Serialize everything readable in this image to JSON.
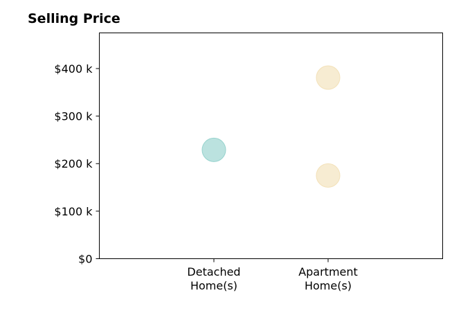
{
  "chart_data": {
    "type": "scatter",
    "title": "Selling Price",
    "xlabel": "",
    "ylabel": "",
    "categories": [
      [
        "Detached",
        "Home(s)"
      ],
      [
        "Apartment",
        "Home(s)"
      ]
    ],
    "ylim": [
      0,
      475000
    ],
    "y_ticks": [
      {
        "value": 0,
        "label": "$0"
      },
      {
        "value": 100000,
        "label": "$100 k"
      },
      {
        "value": 200000,
        "label": "$200 k"
      },
      {
        "value": 300000,
        "label": "$300 k"
      },
      {
        "value": 400000,
        "label": "$400 k"
      }
    ],
    "points": [
      {
        "category": 0,
        "value": 229000,
        "color": "#8ecfca"
      },
      {
        "category": 1,
        "value": 381000,
        "color": "#f2dfb4"
      },
      {
        "category": 1,
        "value": 175000,
        "color": "#f2dfb4"
      }
    ],
    "grid": false,
    "legend": "none"
  }
}
